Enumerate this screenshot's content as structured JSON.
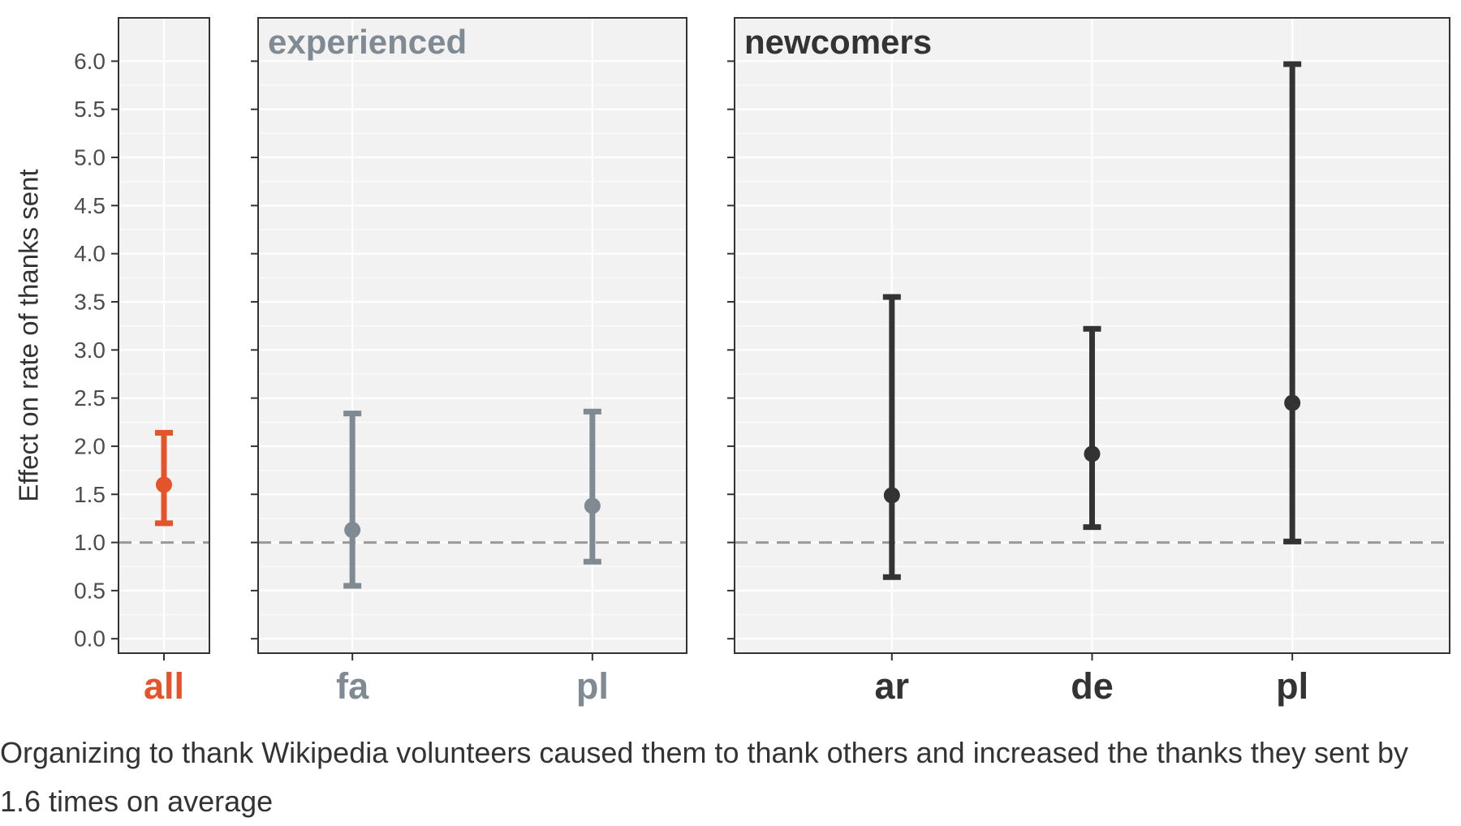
{
  "chart_data": {
    "type": "errorbar",
    "ylabel": "Effect on rate of thanks sent",
    "ylim": [
      -0.15,
      6.45
    ],
    "yticks": [
      "0.0",
      "0.5",
      "1.0",
      "1.5",
      "2.0",
      "2.5",
      "3.0",
      "3.5",
      "4.0",
      "4.5",
      "5.0",
      "5.5",
      "6.0"
    ],
    "reference_line": 1.0,
    "reference_line_style": "dashed",
    "grid": true,
    "legend": "none",
    "panels": [
      {
        "label": "",
        "color": "#e5532b",
        "points": [
          {
            "category": "all",
            "estimate": 1.6,
            "lower": 1.2,
            "upper": 2.14
          }
        ]
      },
      {
        "label": "experienced",
        "color": "#7f8a92",
        "points": [
          {
            "category": "fa",
            "estimate": 1.13,
            "lower": 0.55,
            "upper": 2.34
          },
          {
            "category": "pl",
            "estimate": 1.38,
            "lower": 0.8,
            "upper": 2.36
          }
        ]
      },
      {
        "label": "newcomers",
        "color": "#333333",
        "points": [
          {
            "category": "ar",
            "estimate": 1.49,
            "lower": 0.64,
            "upper": 3.55
          },
          {
            "category": "de",
            "estimate": 1.92,
            "lower": 1.16,
            "upper": 3.22
          },
          {
            "category": "pl",
            "estimate": 2.45,
            "lower": 1.01,
            "upper": 5.97
          }
        ]
      }
    ]
  },
  "caption": "Organizing to thank Wikipedia volunteers caused them to thank others and increased the thanks they sent by 1.6 times on average"
}
